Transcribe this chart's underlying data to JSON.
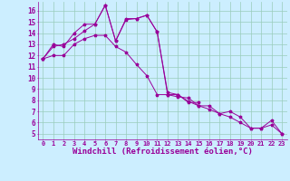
{
  "background_color": "#cceeff",
  "line_color": "#990099",
  "grid_color": "#99ccbb",
  "xlabel": "Windchill (Refroidissement éolien,°C)",
  "xlim": [
    -0.5,
    23.5
  ],
  "ylim": [
    4.5,
    16.8
  ],
  "yticks": [
    5,
    6,
    7,
    8,
    9,
    10,
    11,
    12,
    13,
    14,
    15,
    16
  ],
  "xticks": [
    0,
    1,
    2,
    3,
    4,
    5,
    6,
    7,
    8,
    9,
    10,
    11,
    12,
    13,
    14,
    15,
    16,
    17,
    18,
    19,
    20,
    21,
    22,
    23
  ],
  "line1_x": [
    0,
    1,
    2,
    3,
    4,
    5,
    6,
    7,
    8,
    9,
    10,
    11,
    12,
    13,
    14,
    15
  ],
  "line1_y": [
    11.7,
    13.0,
    12.8,
    14.0,
    14.8,
    14.8,
    16.5,
    13.3,
    15.2,
    15.3,
    15.6,
    14.1,
    8.5,
    8.5,
    7.8,
    7.8
  ],
  "line2_x": [
    0,
    1,
    2,
    3,
    4,
    5,
    6,
    7,
    8,
    9,
    10,
    11,
    12,
    13,
    14,
    15,
    16,
    17,
    18,
    19,
    20,
    21,
    22,
    23
  ],
  "line2_y": [
    11.7,
    12.8,
    13.0,
    13.5,
    14.2,
    14.8,
    16.5,
    13.3,
    15.3,
    15.3,
    15.6,
    14.1,
    8.7,
    8.5,
    7.9,
    7.5,
    7.5,
    6.8,
    6.5,
    6.0,
    5.5,
    5.5,
    6.2,
    5.0
  ],
  "line3_x": [
    0,
    1,
    2,
    3,
    4,
    5,
    6,
    7,
    8,
    9,
    10,
    11,
    12,
    13,
    14,
    15,
    16,
    17,
    18,
    19,
    20,
    21,
    22,
    23
  ],
  "line3_y": [
    11.7,
    12.0,
    12.0,
    13.0,
    13.5,
    13.8,
    13.8,
    12.8,
    12.3,
    11.2,
    10.2,
    8.5,
    8.5,
    8.3,
    8.2,
    7.5,
    7.2,
    6.8,
    7.0,
    6.5,
    5.5,
    5.5,
    5.8,
    5.0
  ]
}
